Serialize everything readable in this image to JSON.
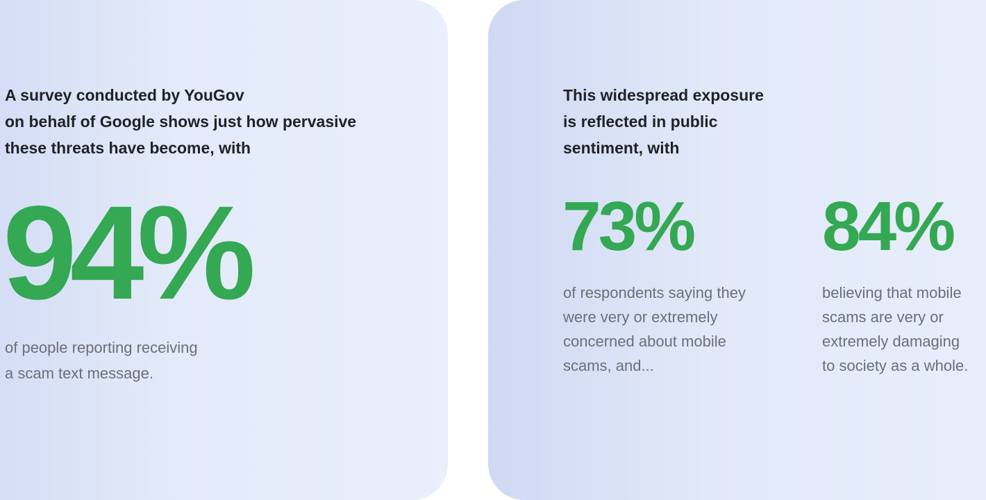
{
  "colors": {
    "accent_green": "#34a853",
    "heading": "#1f2227",
    "body": "#6b6f77"
  },
  "left": {
    "heading_lines": [
      "A survey conducted by YouGov",
      "on behalf of Google shows just how pervasive",
      "these threats have become, with"
    ],
    "stat": "94%",
    "desc_lines": [
      "of people reporting receiving",
      "a scam text message."
    ]
  },
  "right": {
    "heading_lines": [
      "This widespread exposure",
      "is reflected in public",
      "sentiment, with"
    ],
    "stats": [
      {
        "value": "73%",
        "desc_lines": [
          "of respondents saying they",
          "were very or extremely",
          "concerned about mobile",
          "scams, and..."
        ]
      },
      {
        "value": "84%",
        "desc_lines": [
          "believing that mobile",
          "scams are very or",
          "extremely damaging",
          "to society as a whole."
        ]
      }
    ]
  }
}
